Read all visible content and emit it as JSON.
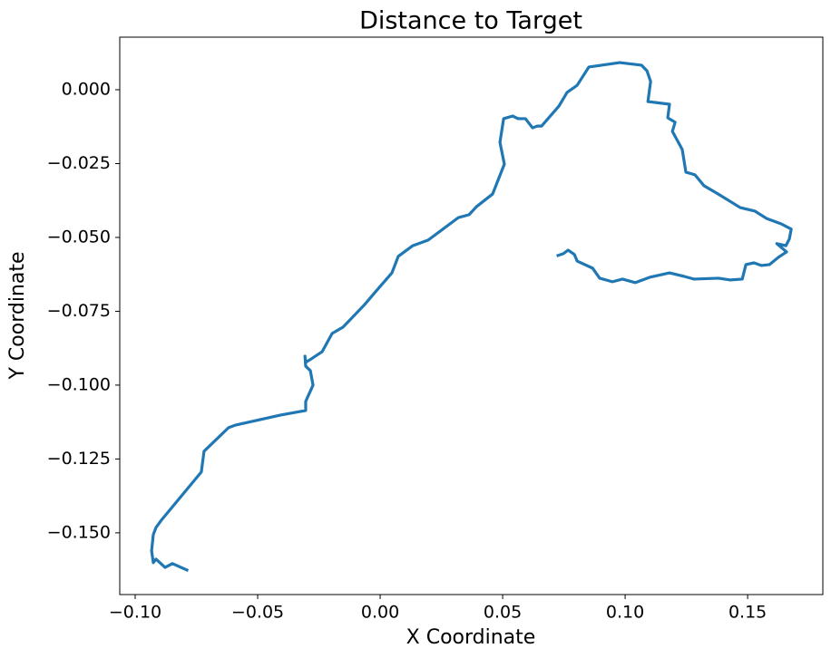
{
  "chart_data": {
    "type": "line",
    "title": "Distance to Target",
    "x_label": "X Coordinate",
    "y_label": "Y Coordinate",
    "color": "#1f77b4",
    "x": [
      -0.0789,
      -0.0848,
      -0.0878,
      -0.0915,
      -0.0926,
      -0.0933,
      -0.0926,
      -0.0915,
      -0.0893,
      -0.073,
      -0.0719,
      -0.0619,
      -0.0589,
      -0.0404,
      -0.0304,
      -0.0304,
      -0.0274,
      -0.0285,
      -0.0304,
      -0.0307,
      -0.0304,
      -0.0281,
      -0.0237,
      -0.0196,
      -0.0152,
      -0.0063,
      -0.0019,
      0.0048,
      0.0074,
      0.0133,
      0.0196,
      0.0319,
      0.0363,
      0.0393,
      0.0459,
      0.0507,
      0.0489,
      0.0504,
      0.0541,
      0.0563,
      0.0593,
      0.0622,
      0.0641,
      0.0659,
      0.073,
      0.0763,
      0.0804,
      0.0852,
      0.0978,
      0.1067,
      0.1089,
      0.1104,
      0.1093,
      0.1181,
      0.1174,
      0.1204,
      0.1193,
      0.1233,
      0.1248,
      0.1285,
      0.1322,
      0.1374,
      0.147,
      0.153,
      0.1578,
      0.1637,
      0.1678,
      0.167,
      0.1656,
      0.1619,
      0.1659,
      0.1626,
      0.1589,
      0.1556,
      0.1526,
      0.1493,
      0.1478,
      0.143,
      0.1381,
      0.1281,
      0.1241,
      0.1181,
      0.1148,
      0.11,
      0.1041,
      0.0989,
      0.0948,
      0.0896,
      0.0867,
      0.0804,
      0.0793,
      0.0767,
      0.0748,
      0.0726
    ],
    "values": [
      -0.1626,
      -0.1604,
      -0.1617,
      -0.1589,
      -0.1601,
      -0.1561,
      -0.1506,
      -0.1482,
      -0.1457,
      -0.1294,
      -0.1224,
      -0.1144,
      -0.1135,
      -0.1101,
      -0.1086,
      -0.1055,
      -0.1,
      -0.0951,
      -0.0936,
      -0.0902,
      -0.0923,
      -0.0911,
      -0.0887,
      -0.0825,
      -0.0804,
      -0.0727,
      -0.0684,
      -0.062,
      -0.0564,
      -0.0528,
      -0.0509,
      -0.0433,
      -0.0423,
      -0.0396,
      -0.0353,
      -0.0252,
      -0.0178,
      -0.0098,
      -0.0089,
      -0.0098,
      -0.0098,
      -0.0129,
      -0.0123,
      -0.0123,
      -0.0055,
      -0.0009,
      0.0015,
      0.0077,
      0.0092,
      0.0083,
      0.0064,
      0.0028,
      -0.004,
      -0.0049,
      -0.0095,
      -0.011,
      -0.0141,
      -0.0202,
      -0.0279,
      -0.0288,
      -0.0325,
      -0.035,
      -0.0399,
      -0.0411,
      -0.0436,
      -0.0454,
      -0.0472,
      -0.0506,
      -0.0528,
      -0.0521,
      -0.0549,
      -0.0567,
      -0.0592,
      -0.0595,
      -0.0586,
      -0.0592,
      -0.0641,
      -0.0644,
      -0.0638,
      -0.0641,
      -0.0632,
      -0.062,
      -0.0626,
      -0.0635,
      -0.0653,
      -0.0641,
      -0.065,
      -0.0638,
      -0.0604,
      -0.058,
      -0.0558,
      -0.0543,
      -0.0555,
      -0.0561
    ],
    "xlim": [
      -0.1063,
      0.1807
    ],
    "ylim": [
      -0.1709,
      0.0178
    ],
    "xticks": [
      {
        "value": -0.1,
        "label": "−0.10"
      },
      {
        "value": -0.05,
        "label": "−0.05"
      },
      {
        "value": 0,
        "label": "0.00"
      },
      {
        "value": 0.05,
        "label": "0.05"
      },
      {
        "value": 0.1,
        "label": "0.10"
      },
      {
        "value": 0.15,
        "label": "0.15"
      }
    ],
    "yticks": [
      {
        "value": -0.15,
        "label": "−0.150"
      },
      {
        "value": -0.125,
        "label": "−0.125"
      },
      {
        "value": -0.1,
        "label": "−0.100"
      },
      {
        "value": -0.075,
        "label": "−0.075"
      },
      {
        "value": -0.05,
        "label": "−0.050"
      },
      {
        "value": -0.025,
        "label": "−0.025"
      },
      {
        "value": 0,
        "label": "0.000"
      }
    ]
  }
}
